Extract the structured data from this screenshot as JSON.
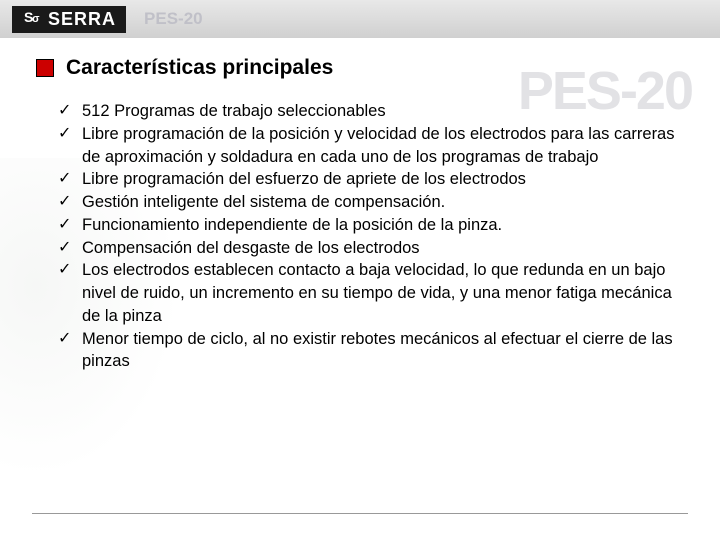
{
  "header": {
    "logo_text": "SERRA",
    "subtitle": "PES-20"
  },
  "watermark": "PES-20",
  "section_title": "Características principales",
  "features": [
    "512 Programas de trabajo seleccionables",
    "Libre programación de la posición y velocidad de los electrodos para las carreras de aproximación y soldadura en cada uno de los programas de trabajo",
    "Libre programación del esfuerzo de apriete de los electrodos",
    "Gestión inteligente del sistema de compensación.",
    "Funcionamiento independiente de la posición de la pinza.",
    "Compensación del desgaste de los electrodos",
    "Los electrodos establecen contacto a baja velocidad, lo que redunda en un bajo nivel de ruido, un incremento en su tiempo de vida, y una menor fatiga mecánica de la pinza",
    "Menor tiempo de ciclo, al no existir rebotes mecánicos al efectuar el cierre de las pinzas"
  ],
  "colors": {
    "accent_red": "#cc0000",
    "header_gradient_top": "#e8e8e8",
    "header_gradient_bottom": "#d0d0d0",
    "logo_bg": "#1a1a1a",
    "watermark_color": "rgba(140,140,150,0.25)"
  }
}
